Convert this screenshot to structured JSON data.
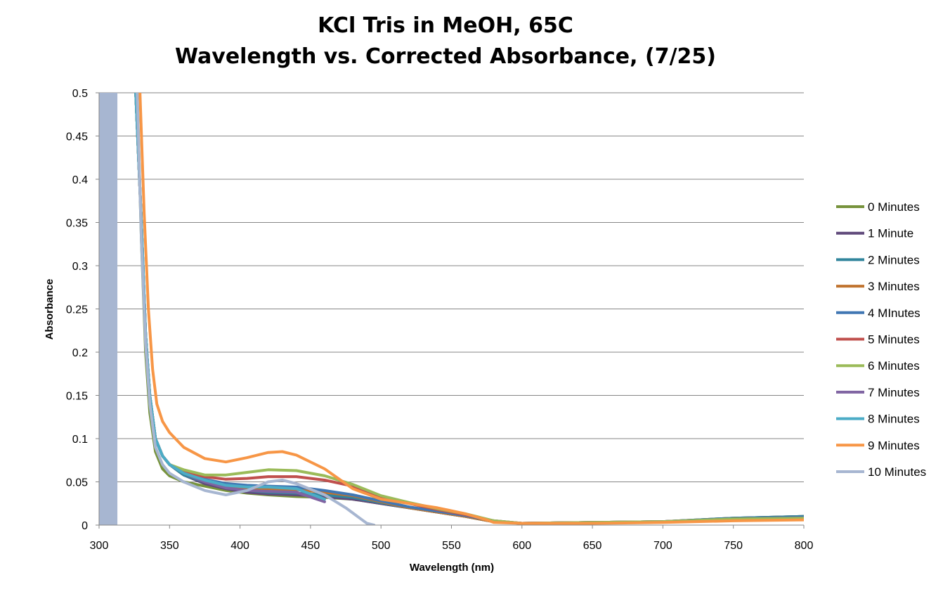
{
  "chart_data": {
    "type": "line",
    "title_line1": "KCl Tris in MeOH, 65C",
    "title_line2": "Wavelength vs. Corrected Absorbance, (7/25)",
    "xlabel": "Wavelength (nm)",
    "ylabel": "Absorbance",
    "xlim": [
      300,
      800
    ],
    "ylim": [
      0,
      0.5
    ],
    "xticks": [
      "300",
      "350",
      "400",
      "450",
      "500",
      "550",
      "600",
      "650",
      "700",
      "750",
      "800"
    ],
    "yticks": [
      "0",
      "0.05",
      "0.1",
      "0.15",
      "0.2",
      "0.25",
      "0.3",
      "0.35",
      "0.4",
      "0.45",
      "0.5"
    ],
    "grid": "horizontal",
    "legend_position": "right",
    "shaded_region": {
      "x": [
        300,
        313
      ],
      "color": "#a7b6d1"
    },
    "series": [
      {
        "name": "0 Minutes",
        "color": "#77933c",
        "x": [
          327,
          330,
          333,
          336,
          340,
          345,
          350,
          360,
          375,
          390,
          405,
          420,
          440,
          460,
          480,
          500,
          520,
          540,
          560,
          580,
          600,
          650,
          700,
          750,
          800
        ],
        "y": [
          0.5,
          0.33,
          0.2,
          0.13,
          0.085,
          0.065,
          0.057,
          0.05,
          0.045,
          0.04,
          0.037,
          0.035,
          0.033,
          0.032,
          0.03,
          0.025,
          0.02,
          0.015,
          0.01,
          0.004,
          0.002,
          0.003,
          0.004,
          0.008,
          0.01
        ]
      },
      {
        "name": "1 Minute",
        "color": "#604a7b",
        "x": [
          326,
          330,
          333,
          336,
          340,
          345,
          350,
          360,
          375,
          390,
          405,
          420,
          440,
          460,
          480,
          500,
          520,
          540,
          560,
          580,
          600,
          650,
          700,
          750,
          800
        ],
        "y": [
          0.5,
          0.35,
          0.22,
          0.15,
          0.1,
          0.08,
          0.07,
          0.058,
          0.048,
          0.042,
          0.038,
          0.036,
          0.035,
          0.033,
          0.03,
          0.025,
          0.02,
          0.015,
          0.01,
          0.004,
          0.002,
          0.003,
          0.004,
          0.008,
          0.01
        ]
      },
      {
        "name": "2 Minutes",
        "color": "#31859c",
        "x": [
          326,
          330,
          333,
          336,
          340,
          345,
          350,
          360,
          375,
          390,
          405,
          420,
          440,
          460,
          480,
          500,
          520,
          540,
          560,
          580,
          600,
          650,
          700,
          750,
          800
        ],
        "y": [
          0.5,
          0.35,
          0.22,
          0.15,
          0.1,
          0.08,
          0.07,
          0.058,
          0.05,
          0.044,
          0.04,
          0.038,
          0.037,
          0.035,
          0.032,
          0.026,
          0.02,
          0.015,
          0.01,
          0.004,
          0.002,
          0.003,
          0.004,
          0.008,
          0.01
        ]
      },
      {
        "name": "3 Minutes",
        "color": "#c0732f",
        "x": [
          326,
          330,
          333,
          336,
          340,
          345,
          350,
          360,
          375,
          390,
          405,
          420,
          440,
          460,
          480,
          500,
          520,
          540,
          560,
          580,
          600,
          650,
          700,
          750,
          800
        ],
        "y": [
          0.5,
          0.35,
          0.22,
          0.15,
          0.1,
          0.08,
          0.07,
          0.06,
          0.052,
          0.046,
          0.043,
          0.042,
          0.041,
          0.038,
          0.034,
          0.027,
          0.02,
          0.015,
          0.01,
          0.004,
          0.002,
          0.003,
          0.004,
          0.007,
          0.009
        ]
      },
      {
        "name": "4 MInutes",
        "color": "#4077b3",
        "x": [
          326,
          330,
          333,
          336,
          340,
          345,
          350,
          360,
          375,
          390,
          405,
          420,
          440,
          460,
          480,
          500,
          520,
          540,
          560,
          580,
          600,
          650,
          700,
          750,
          800
        ],
        "y": [
          0.5,
          0.35,
          0.22,
          0.15,
          0.1,
          0.08,
          0.07,
          0.06,
          0.053,
          0.048,
          0.046,
          0.045,
          0.044,
          0.04,
          0.035,
          0.028,
          0.021,
          0.016,
          0.011,
          0.005,
          0.002,
          0.003,
          0.004,
          0.007,
          0.009
        ]
      },
      {
        "name": "5 Minutes",
        "color": "#c0504d",
        "x": [
          326,
          330,
          333,
          336,
          340,
          345,
          350,
          360,
          375,
          390,
          405,
          420,
          440,
          460,
          480,
          500,
          520,
          540,
          560,
          580,
          600,
          650,
          700,
          750,
          800
        ],
        "y": [
          0.5,
          0.35,
          0.22,
          0.15,
          0.1,
          0.08,
          0.07,
          0.062,
          0.056,
          0.053,
          0.054,
          0.056,
          0.056,
          0.052,
          0.045,
          0.033,
          0.025,
          0.018,
          0.012,
          0.005,
          0.002,
          0.003,
          0.004,
          0.007,
          0.008
        ]
      },
      {
        "name": "6 Minutes",
        "color": "#9bbb59",
        "x": [
          326,
          330,
          333,
          336,
          340,
          345,
          350,
          360,
          375,
          390,
          405,
          420,
          440,
          460,
          480,
          500,
          520,
          540,
          560,
          580,
          600,
          650,
          700,
          750,
          800
        ],
        "y": [
          0.5,
          0.35,
          0.22,
          0.15,
          0.1,
          0.08,
          0.07,
          0.064,
          0.058,
          0.058,
          0.061,
          0.064,
          0.063,
          0.057,
          0.047,
          0.034,
          0.026,
          0.019,
          0.013,
          0.005,
          0.002,
          0.003,
          0.004,
          0.007,
          0.008
        ]
      },
      {
        "name": "7 Minutes",
        "color": "#8064a2",
        "x": [
          326,
          330,
          333,
          336,
          340,
          345,
          350,
          360,
          375,
          390,
          405,
          420,
          440,
          460
        ],
        "y": [
          0.5,
          0.35,
          0.22,
          0.15,
          0.1,
          0.08,
          0.07,
          0.06,
          0.05,
          0.043,
          0.04,
          0.039,
          0.038,
          0.027
        ]
      },
      {
        "name": "8 Minutes",
        "color": "#4bacc6",
        "x": [
          326,
          330,
          333,
          336,
          340,
          345,
          350,
          360,
          375,
          390,
          405,
          420,
          440,
          460
        ],
        "y": [
          0.5,
          0.35,
          0.22,
          0.15,
          0.1,
          0.08,
          0.07,
          0.06,
          0.052,
          0.046,
          0.044,
          0.044,
          0.042,
          0.03
        ]
      },
      {
        "name": "9 Minutes",
        "color": "#f79646",
        "x": [
          329,
          332,
          335,
          338,
          341,
          345,
          350,
          360,
          375,
          390,
          405,
          420,
          430,
          440,
          460,
          480,
          500,
          520,
          540,
          560,
          575,
          580,
          600,
          650,
          700,
          750,
          800
        ],
        "y": [
          0.5,
          0.36,
          0.25,
          0.18,
          0.14,
          0.12,
          0.107,
          0.09,
          0.077,
          0.073,
          0.078,
          0.084,
          0.085,
          0.081,
          0.065,
          0.042,
          0.03,
          0.025,
          0.02,
          0.013,
          0.006,
          0.003,
          0.002,
          0.002,
          0.003,
          0.005,
          0.006
        ]
      },
      {
        "name": "10 Minutes",
        "color": "#a7b6d1",
        "x": [
          327,
          330,
          333,
          336,
          340,
          345,
          350,
          360,
          375,
          390,
          405,
          420,
          430,
          440,
          460,
          475,
          485,
          490,
          495
        ],
        "y": [
          0.5,
          0.33,
          0.21,
          0.14,
          0.09,
          0.07,
          0.06,
          0.05,
          0.04,
          0.035,
          0.04,
          0.05,
          0.052,
          0.048,
          0.035,
          0.02,
          0.008,
          0.002,
          0.0
        ]
      }
    ]
  }
}
